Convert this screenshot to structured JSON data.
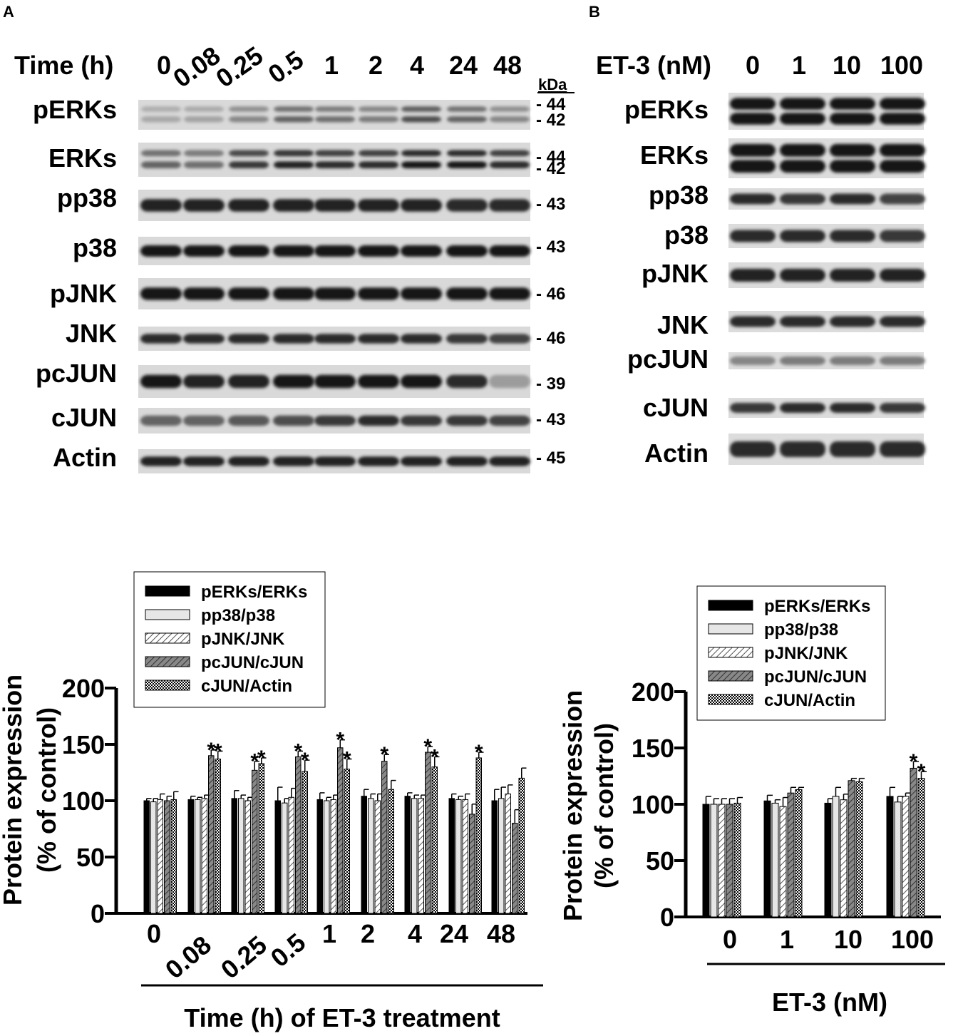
{
  "panel_a": {
    "letter": "A",
    "time_label": "Time (h)",
    "time_points": [
      "0",
      "0.08",
      "0.25",
      "0.5",
      "1",
      "2",
      "4",
      "24",
      "48"
    ],
    "kda_label": "kDa",
    "blots": [
      {
        "label": "pERKs",
        "kda": [
          "44",
          "42"
        ],
        "double": true,
        "intensity": [
          0.3,
          0.32,
          0.45,
          0.6,
          0.55,
          0.5,
          0.7,
          0.6,
          0.45
        ]
      },
      {
        "label": "ERKs",
        "kda": [
          "44",
          "42"
        ],
        "double": true,
        "intensity": [
          0.6,
          0.55,
          0.8,
          0.9,
          0.85,
          0.85,
          0.95,
          0.95,
          0.85
        ]
      },
      {
        "label": "pp38",
        "kda": [
          "43"
        ],
        "double": false,
        "intensity": [
          0.9,
          0.9,
          0.9,
          0.9,
          0.9,
          0.9,
          0.9,
          0.85,
          0.85
        ]
      },
      {
        "label": "p38",
        "kda": [
          "43"
        ],
        "double": false,
        "intensity": [
          0.95,
          0.95,
          0.95,
          0.95,
          0.95,
          0.95,
          0.95,
          0.95,
          0.95
        ]
      },
      {
        "label": "pJNK",
        "kda": [
          "46"
        ],
        "double": false,
        "intensity": [
          0.95,
          0.95,
          0.95,
          0.95,
          0.95,
          0.95,
          0.95,
          0.95,
          0.95
        ]
      },
      {
        "label": "JNK",
        "kda": [
          "46"
        ],
        "double": false,
        "intensity": [
          0.85,
          0.85,
          0.85,
          0.85,
          0.85,
          0.85,
          0.85,
          0.8,
          0.75
        ]
      },
      {
        "label": "pcJUN",
        "kda": [
          "39"
        ],
        "double": false,
        "intensity": [
          0.95,
          0.9,
          0.9,
          0.95,
          0.95,
          0.95,
          0.95,
          0.85,
          0.35
        ]
      },
      {
        "label": "cJUN",
        "kda": [
          "43"
        ],
        "double": false,
        "intensity": [
          0.6,
          0.6,
          0.65,
          0.7,
          0.8,
          0.85,
          0.8,
          0.8,
          0.75
        ]
      },
      {
        "label": "Actin",
        "kda": [
          "45"
        ],
        "double": false,
        "intensity": [
          0.9,
          0.9,
          0.9,
          0.9,
          0.9,
          0.9,
          0.9,
          0.9,
          0.9
        ]
      }
    ]
  },
  "panel_b": {
    "letter": "B",
    "dose_label": "ET-3 (nM)",
    "doses": [
      "0",
      "1",
      "10",
      "100"
    ],
    "blots": [
      {
        "label": "pERKs",
        "double": true,
        "intensity": [
          0.95,
          0.95,
          0.95,
          0.95
        ]
      },
      {
        "label": "ERKs",
        "double": true,
        "intensity": [
          0.95,
          0.95,
          0.95,
          0.95
        ]
      },
      {
        "label": "pp38",
        "double": false,
        "intensity": [
          0.85,
          0.8,
          0.85,
          0.75
        ]
      },
      {
        "label": "p38",
        "double": false,
        "intensity": [
          0.85,
          0.85,
          0.85,
          0.8
        ]
      },
      {
        "label": "pJNK",
        "double": false,
        "intensity": [
          0.9,
          0.9,
          0.9,
          0.9
        ]
      },
      {
        "label": "JNK",
        "double": false,
        "intensity": [
          0.85,
          0.85,
          0.85,
          0.85
        ]
      },
      {
        "label": "pcJUN",
        "double": false,
        "intensity": [
          0.45,
          0.5,
          0.5,
          0.5
        ]
      },
      {
        "label": "cJUN",
        "double": false,
        "intensity": [
          0.8,
          0.85,
          0.85,
          0.8
        ]
      },
      {
        "label": "Actin",
        "double": false,
        "intensity": [
          0.85,
          0.85,
          0.85,
          0.85
        ]
      }
    ]
  },
  "chart_data": [
    {
      "type": "bar",
      "categories": [
        "0",
        "0.08",
        "0.25",
        "0.5",
        "1",
        "2",
        "4",
        "24",
        "48"
      ],
      "ylabel": [
        "Protein expression",
        "(% of control)"
      ],
      "xlabel": "Time (h) of ET-3 treatment",
      "ylim": [
        0,
        200
      ],
      "yticks": [
        "0",
        "50",
        "100",
        "150",
        "200"
      ],
      "legend_position": "top",
      "series": [
        {
          "name": "pERKs/ERKs",
          "pattern": "solid",
          "values": [
            100,
            101,
            102,
            100,
            101,
            104,
            104,
            102,
            100
          ],
          "errors": [
            2,
            3,
            7,
            12,
            6,
            6,
            3,
            4,
            10
          ],
          "stars": [
            "",
            "",
            "",
            "",
            "",
            "",
            "",
            "",
            ""
          ]
        },
        {
          "name": "pp38/p38",
          "pattern": "light",
          "values": [
            99,
            101,
            102,
            98,
            100,
            102,
            102,
            101,
            102
          ],
          "errors": [
            3,
            2,
            3,
            4,
            3,
            4,
            3,
            3,
            10
          ]
        },
        {
          "name": "pJNK/JNK",
          "pattern": "hatch",
          "values": [
            101,
            102,
            100,
            103,
            101,
            100,
            102,
            101,
            106
          ],
          "errors": [
            5,
            3,
            3,
            8,
            4,
            6,
            3,
            5,
            8
          ],
          "stars": [
            "",
            "",
            "",
            "",
            "",
            "",
            "",
            "",
            ""
          ]
        },
        {
          "name": "pcJUN/cJUN",
          "pattern": "hatch-dark",
          "values": [
            100,
            140,
            127,
            139,
            147,
            135,
            143,
            88,
            80
          ],
          "errors": [
            4,
            5,
            8,
            5,
            7,
            6,
            5,
            9,
            12
          ],
          "stars": [
            "",
            "*",
            "*",
            "*",
            "*",
            "*",
            "*",
            "",
            ""
          ]
        },
        {
          "name": "cJUN/Actin",
          "pattern": "check",
          "values": [
            101,
            137,
            133,
            126,
            128,
            110,
            130,
            138,
            120
          ],
          "errors": [
            7,
            7,
            5,
            10,
            9,
            8,
            9,
            5,
            9
          ],
          "stars": [
            "",
            "*",
            "*",
            "*",
            "*",
            "",
            "*",
            "*",
            ""
          ]
        }
      ]
    },
    {
      "type": "bar",
      "categories": [
        "0",
        "1",
        "10",
        "100"
      ],
      "ylabel": [
        "Protein expression",
        "(% of control)"
      ],
      "xlabel": "ET-3 (nM)",
      "ylim": [
        0,
        200
      ],
      "yticks": [
        "0",
        "50",
        "100",
        "150",
        "200"
      ],
      "legend_position": "top",
      "series": [
        {
          "name": "pERKs/ERKs",
          "pattern": "solid",
          "values": [
            100,
            103,
            101,
            107
          ],
          "errors": [
            7,
            5,
            4,
            8
          ],
          "stars": [
            "",
            "",
            "",
            ""
          ]
        },
        {
          "name": "pp38/p38",
          "pattern": "light",
          "values": [
            100,
            101,
            107,
            102
          ],
          "errors": [
            5,
            3,
            8,
            5
          ]
        },
        {
          "name": "pJNK/JNK",
          "pattern": "hatch",
          "values": [
            100,
            98,
            104,
            107
          ],
          "errors": [
            5,
            8,
            5,
            3
          ],
          "stars": [
            "",
            "",
            "",
            ""
          ]
        },
        {
          "name": "pcJUN/cJUN",
          "pattern": "hatch-dark",
          "values": [
            100,
            110,
            121,
            132
          ],
          "errors": [
            5,
            5,
            2,
            6
          ],
          "stars": [
            "",
            "",
            "",
            "*"
          ]
        },
        {
          "name": "cJUN/Actin",
          "pattern": "check",
          "values": [
            101,
            113,
            120,
            123
          ],
          "errors": [
            5,
            2,
            3,
            6
          ],
          "stars": [
            "",
            "",
            "",
            "*"
          ]
        }
      ]
    }
  ]
}
